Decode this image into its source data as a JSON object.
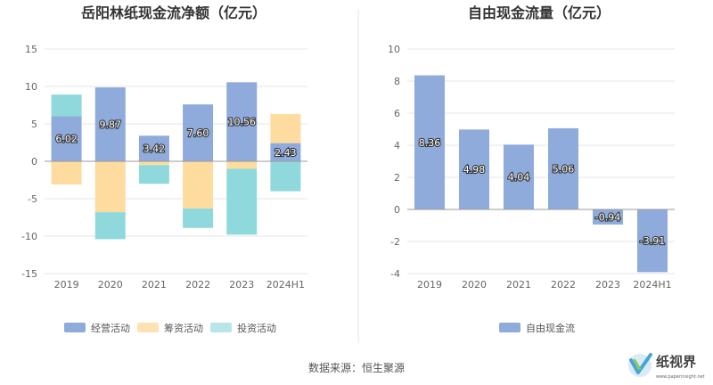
{
  "chart_data": [
    {
      "type": "bar",
      "title": "岳阳林纸现金流净额（亿元）",
      "categories": [
        "2019",
        "2020",
        "2021",
        "2022",
        "2023",
        "2024H1"
      ],
      "ylim": [
        -15,
        15
      ],
      "yticks": [
        15,
        10,
        5,
        0,
        -5,
        -10,
        -15
      ],
      "grid": true,
      "legend_position": "bottom",
      "stacked": true,
      "series": [
        {
          "name": "经营活动",
          "color": "#8eabdc",
          "values": [
            6.02,
            9.87,
            3.42,
            7.6,
            10.56,
            2.43
          ]
        },
        {
          "name": "筹资活动",
          "color": "#fedca0",
          "values": [
            -3.1,
            -6.8,
            -0.5,
            -6.3,
            -1.0,
            3.9
          ]
        },
        {
          "name": "投资活动",
          "color": "#8fd9dc",
          "values": [
            2.9,
            -3.6,
            -2.5,
            -2.6,
            -8.8,
            -4.0
          ]
        }
      ],
      "data_labels": [
        "6.02",
        "9.87",
        "3.42",
        "7.60",
        "10.56",
        "2.43"
      ]
    },
    {
      "type": "bar",
      "title": "自由现金流量（亿元）",
      "categories": [
        "2019",
        "2020",
        "2021",
        "2022",
        "2023",
        "2024H1"
      ],
      "ylim": [
        -4,
        10
      ],
      "yticks": [
        10,
        8,
        6,
        4,
        2,
        0,
        -2,
        -4
      ],
      "grid": true,
      "legend_position": "bottom",
      "series": [
        {
          "name": "自由现金流",
          "color": "#8eabdc",
          "values": [
            8.36,
            4.98,
            4.04,
            5.06,
            -0.94,
            -3.91
          ]
        }
      ],
      "data_labels": [
        "8.36",
        "4.98",
        "4.04",
        "5.06",
        "-0.94",
        "-3.91"
      ]
    }
  ],
  "footer": {
    "source": "数据来源：恒生聚源",
    "logo_text": "纸视界",
    "logo_url_text": "www.paperinsight.net"
  }
}
